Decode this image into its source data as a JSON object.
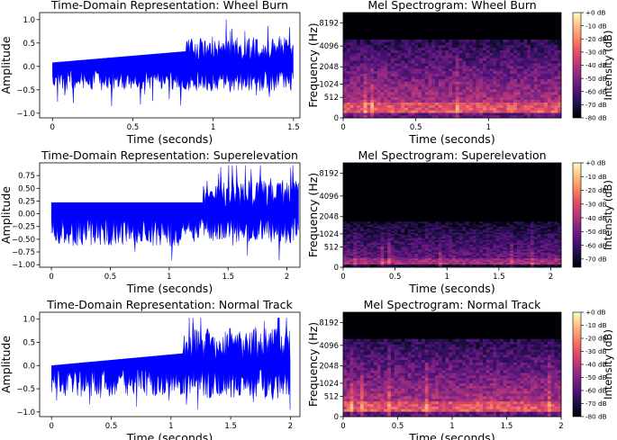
{
  "colors": {
    "wave": "#0000ff",
    "axis": "#000000",
    "background": "#ffffff"
  },
  "chart_data": [
    {
      "type": "line",
      "title": "Time-Domain Representation: Wheel Burn",
      "xlabel": "Time (seconds)",
      "ylabel": "Amplitude",
      "xlim": [
        -0.08,
        1.54
      ],
      "ylim": [
        -1.1,
        1.15
      ],
      "xticks": [
        0,
        0.5,
        1,
        1.5
      ],
      "xtick_labels": [
        "0",
        "0.5",
        "1",
        "1.5"
      ],
      "yticks": [
        -1.0,
        -0.5,
        0.0,
        0.5,
        1.0
      ],
      "ytick_labels": [
        "−1.0",
        "−0.5",
        "0.0",
        "0.5",
        "1.0"
      ],
      "duration": 1.5,
      "envelope": {
        "segment_time": [
          0,
          0.83
        ],
        "segment_start": 0.08,
        "segment_end": 0.32,
        "noise_pre": 0.42,
        "noise_post": 0.5,
        "peak": 1.03,
        "trough": -1.04
      }
    },
    {
      "type": "heatmap",
      "title": "Mel Spectrogram: Wheel Burn",
      "xlabel": "Time (seconds)",
      "ylabel": "Frequency (Hz)",
      "xlim": [
        0,
        1.5
      ],
      "xticks": [
        0,
        0.5,
        1
      ],
      "xtick_labels": [
        "0",
        "0.5",
        "1"
      ],
      "yticks": [
        0,
        512,
        1024,
        2048,
        4096,
        8192
      ],
      "ytick_labels": [
        "0",
        "512",
        "1024",
        "2048",
        "4096",
        "8192"
      ],
      "cutoff_hz": 5000,
      "colorbar_label": "Intensity (dB)",
      "colorbar_ticks": [
        "+0 dB",
        "-10 dB",
        "-20 dB",
        "-30 dB",
        "-40 dB",
        "-50 dB",
        "-60 dB",
        "-70 dB",
        "-80 dB"
      ],
      "colorbar_range": [
        -80,
        0
      ],
      "level": 0.55
    },
    {
      "type": "line",
      "title": "Time-Domain Representation: Superelevation",
      "xlabel": "Time (seconds)",
      "ylabel": "Amplitude",
      "xlim": [
        -0.1,
        2.11
      ],
      "ylim": [
        -1.05,
        1.0
      ],
      "xticks": [
        0,
        0.5,
        1,
        1.5,
        2
      ],
      "xtick_labels": [
        "0",
        "0.5",
        "1",
        "1.5",
        "2"
      ],
      "yticks": [
        -1.0,
        -0.75,
        -0.5,
        -0.25,
        0.0,
        0.25,
        0.5,
        0.75
      ],
      "ytick_labels": [
        "−1.00",
        "−0.75",
        "−0.50",
        "−0.25",
        "0.00",
        "0.25",
        "0.50",
        "0.75"
      ],
      "duration": 2.1,
      "envelope": {
        "segment_time": [
          0,
          1.29
        ],
        "segment_start": 0.22,
        "segment_end": 0.22,
        "noise_pre": 0.55,
        "noise_post": 0.55,
        "peak": 0.95,
        "trough": -0.98
      }
    },
    {
      "type": "heatmap",
      "title": "Mel Spectrogram: Superelevation",
      "xlabel": "Time (seconds)",
      "ylabel": "Frequency (Hz)",
      "xlim": [
        0,
        2.1
      ],
      "xticks": [
        0,
        0.5,
        1,
        1.5,
        2
      ],
      "xtick_labels": [
        "0",
        "0.5",
        "1",
        "1.5",
        "2"
      ],
      "yticks": [
        0,
        512,
        1024,
        2048,
        4096,
        8192
      ],
      "ytick_labels": [
        "0",
        "512",
        "1024",
        "2048",
        "4096",
        "8192"
      ],
      "cutoff_hz": 1700,
      "colorbar_label": "Intensity (dB)",
      "colorbar_ticks": [
        "+0 dB",
        "-10 dB",
        "-20 dB",
        "-30 dB",
        "-40 dB",
        "-50 dB",
        "-60 dB",
        "-70 dB"
      ],
      "colorbar_range": [
        -76,
        0
      ],
      "level": 0.35
    },
    {
      "type": "line",
      "title": "Time-Domain Representation: Normal Track",
      "xlabel": "Time (seconds)",
      "ylabel": "Amplitude",
      "xlim": [
        -0.1,
        2.08
      ],
      "ylim": [
        -1.1,
        1.15
      ],
      "xticks": [
        0,
        0.5,
        1,
        1.5,
        2
      ],
      "xtick_labels": [
        "0",
        "0.5",
        "1",
        "1.5",
        "2"
      ],
      "yticks": [
        -1.0,
        -0.5,
        0.0,
        0.5,
        1.0
      ],
      "ytick_labels": [
        "−1.0",
        "−0.5",
        "0.0",
        "0.5",
        "1.0"
      ],
      "duration": 2.0,
      "envelope": {
        "segment_time": [
          0,
          1.1
        ],
        "segment_start": 0.0,
        "segment_end": 0.26,
        "noise_pre": 0.6,
        "noise_post": 0.7,
        "peak": 1.03,
        "trough": -1.0
      }
    },
    {
      "type": "heatmap",
      "title": "Mel Spectrogram: Normal Track",
      "xlabel": "Time (seconds)",
      "ylabel": "Frequency (Hz)",
      "xlim": [
        0,
        2.0
      ],
      "xticks": [
        0,
        0.5,
        1,
        1.5,
        2
      ],
      "xtick_labels": [
        "0",
        "0.5",
        "1",
        "1.5",
        "2"
      ],
      "yticks": [
        0,
        512,
        1024,
        2048,
        4096,
        8192
      ],
      "ytick_labels": [
        "0",
        "512",
        "1024",
        "2048",
        "4096",
        "8192"
      ],
      "cutoff_hz": 5000,
      "colorbar_label": "Intensity (dB)",
      "colorbar_ticks": [
        "+0 dB",
        "-10 dB",
        "-20 dB",
        "-30 dB",
        "-40 dB",
        "-50 dB",
        "-60 dB",
        "-70 dB",
        "-80 dB"
      ],
      "colorbar_range": [
        -80,
        0
      ],
      "level": 0.55
    }
  ]
}
